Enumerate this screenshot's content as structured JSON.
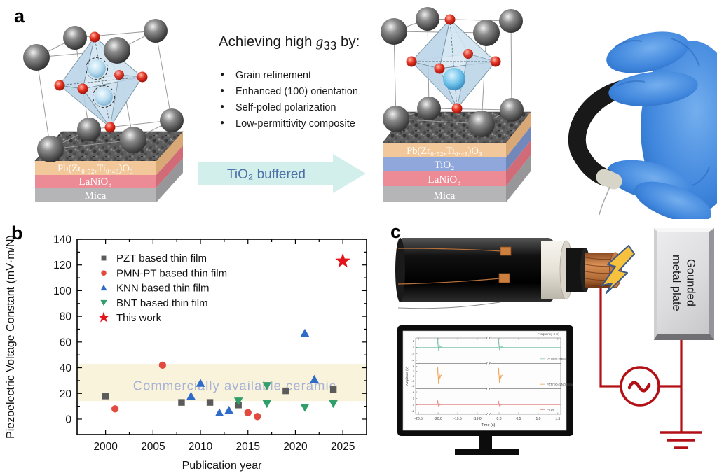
{
  "panels": {
    "a": {
      "label": "a",
      "heading_prefix": "Achieving high ",
      "heading_g": "g",
      "heading_sub": "33",
      "heading_suffix": " by:",
      "bullets": [
        "Grain refinement",
        "Enhanced (100) orientation",
        "Self-poled polarization",
        "Low-permittivity composite"
      ],
      "arrow_label": "TiO₂ buffered",
      "left_stack": {
        "layers": [
          {
            "label": "Pb(Zr₀.₅₂,Ti₀.₄₈)O₃",
            "color": "#f2c89b"
          },
          {
            "label": "LaNiO₃",
            "color": "#ec8a95"
          },
          {
            "label": "Mica",
            "color": "#b5b5b7"
          }
        ]
      },
      "right_stack": {
        "layers": [
          {
            "label": "Pb(Zr₀.₅₂,Ti₀.₄₈)O₃",
            "color": "#f2c89b"
          },
          {
            "label": "TiO₂",
            "color": "#8fa7da"
          },
          {
            "label": "LaNiO₃",
            "color": "#ec8a95"
          },
          {
            "label": "Mica",
            "color": "#b5b5b7"
          }
        ]
      }
    },
    "b": {
      "label": "b"
    },
    "c": {
      "label": "c",
      "plate_line1": "Gounded",
      "plate_line2": "metal plate"
    }
  },
  "chart_data": [
    {
      "type": "scatter",
      "title": "",
      "xlabel": "Publication year",
      "ylabel": "Piezoelectric Voltage Constant (mV·m/N)",
      "xlim": [
        1997,
        2027.5
      ],
      "ylim": [
        -12,
        140
      ],
      "xticks": [
        2000,
        2005,
        2010,
        2015,
        2020,
        2025
      ],
      "yticks": [
        0,
        20,
        40,
        60,
        80,
        100,
        120,
        140
      ],
      "grid": false,
      "legend_position": "top-left",
      "band": {
        "label": "Commercially available ceramic",
        "ymin": 14,
        "ymax": 43,
        "color": "#faf3dc",
        "label_color": "#a7b3d6"
      },
      "series": [
        {
          "name": "PZT based thin film",
          "marker": "square",
          "color": "#5b5b5b",
          "points": [
            [
              2000,
              18
            ],
            [
              2008,
              13
            ],
            [
              2011,
              13
            ],
            [
              2014,
              11
            ],
            [
              2019,
              22
            ],
            [
              2024,
              23
            ]
          ]
        },
        {
          "name": "PMN-PT based thin film",
          "marker": "circle",
          "color": "#e2493f",
          "points": [
            [
              2001,
              8
            ],
            [
              2006,
              42
            ],
            [
              2015,
              5
            ],
            [
              2016,
              2
            ]
          ]
        },
        {
          "name": "KNN based thin film",
          "marker": "triangle-up",
          "color": "#2f6cc9",
          "points": [
            [
              2009,
              18
            ],
            [
              2010,
              28
            ],
            [
              2012,
              5
            ],
            [
              2013,
              7
            ],
            [
              2021,
              67
            ],
            [
              2022,
              31
            ]
          ]
        },
        {
          "name": "BNT based thin film",
          "marker": "triangle-down",
          "color": "#319e6b",
          "points": [
            [
              2014,
              14
            ],
            [
              2017,
              26
            ],
            [
              2017,
              12
            ],
            [
              2021,
              9
            ],
            [
              2024,
              12
            ]
          ]
        },
        {
          "name": "This work",
          "marker": "star",
          "color": "#e3121b",
          "points": [
            [
              2025,
              123
            ]
          ]
        }
      ]
    },
    {
      "type": "line",
      "corner_label": "Frequency (Hz)",
      "xlabel": "Time (s)",
      "ylabel": "Amplitude (V)",
      "xticks": [
        -20.5,
        -20.0,
        -19.5,
        -19.0,
        0.0,
        0.5,
        1.0,
        1.5
      ],
      "axis_break": true,
      "subplots": [
        {
          "name": "PZT/LNO/Mica",
          "color": "#86c7b4",
          "yticks": [
            2,
            0,
            -2,
            -4
          ],
          "spike_x": [
            -20,
            0
          ],
          "amp_up": 13,
          "amp_down": 4
        },
        {
          "name": "PZT/TiO₂/LNO/Mica",
          "color": "#f0a85c",
          "yticks": [
            6,
            3,
            0,
            -3,
            -6
          ],
          "spike_x": [
            -20,
            0
          ],
          "amp_up": 13,
          "amp_down": 11
        },
        {
          "name": "PVDF",
          "color": "#e79292",
          "yticks": [
            4,
            2,
            0,
            -2
          ],
          "spike_x": [
            -20,
            0
          ],
          "amp_up": 6,
          "amp_down": 2
        }
      ]
    }
  ]
}
